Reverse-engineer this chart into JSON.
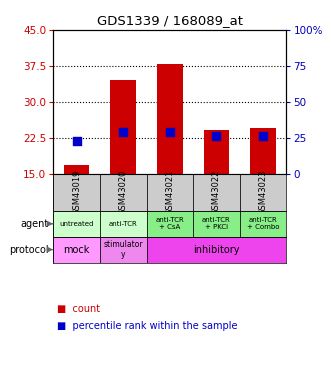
{
  "title": "GDS1339 / 168089_at",
  "samples": [
    "GSM43019",
    "GSM43020",
    "GSM43021",
    "GSM43022",
    "GSM43023"
  ],
  "count_values": [
    16.8,
    34.5,
    37.8,
    24.0,
    24.5
  ],
  "percentile_values": [
    22.5,
    28.8,
    28.8,
    26.2,
    26.0
  ],
  "count_base": 15.0,
  "ylim_left": [
    15,
    45
  ],
  "ylim_right": [
    0,
    100
  ],
  "left_ticks": [
    15,
    22.5,
    30,
    37.5,
    45
  ],
  "right_ticks": [
    0,
    25,
    50,
    75,
    100
  ],
  "agent_labels": [
    "untreated",
    "anti-TCR",
    "anti-TCR\n+ CsA",
    "anti-TCR\n+ PKCi",
    "anti-TCR\n+ Combo"
  ],
  "agent_colors": [
    "#ccffcc",
    "#ccffcc",
    "#88ee88",
    "#88ee88",
    "#88ee88"
  ],
  "bar_color": "#cc0000",
  "dot_color": "#0000cc",
  "bar_width": 0.55,
  "dot_size": 35,
  "left_label_color": "#cc0000",
  "right_label_color": "#0000bb",
  "sample_bg_color": "#cccccc",
  "proto_mock_color": "#ff99ff",
  "proto_stim_color": "#ee88ee",
  "proto_inhib_color": "#ee44ee"
}
